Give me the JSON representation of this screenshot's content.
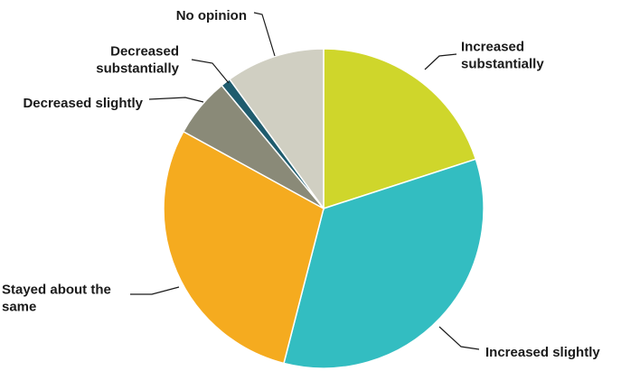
{
  "chart_data": {
    "type": "pie",
    "title": "",
    "slices": [
      {
        "label": "Increased substantially",
        "label_lines": [
          "Increased",
          "substantially"
        ],
        "value": 20,
        "color": "#cfd62b"
      },
      {
        "label": "Increased slightly",
        "label_lines": [
          "Increased slightly"
        ],
        "value": 34,
        "color": "#33bdc1"
      },
      {
        "label": "Stayed about the same",
        "label_lines": [
          "Stayed about the",
          "same"
        ],
        "value": 29,
        "color": "#f5ab1f"
      },
      {
        "label": "Decreased slightly",
        "label_lines": [
          "Decreased slightly"
        ],
        "value": 6,
        "color": "#8a8a78"
      },
      {
        "label": "Decreased substantially",
        "label_lines": [
          "Decreased",
          "substantially"
        ],
        "value": 1,
        "color": "#1f5c6e"
      },
      {
        "label": "No opinion",
        "label_lines": [
          "No opinion"
        ],
        "value": 10,
        "color": "#d0cfc2"
      }
    ],
    "start_angle": "12 o'clock",
    "direction": "clockwise",
    "legend": "none (callout labels)"
  }
}
